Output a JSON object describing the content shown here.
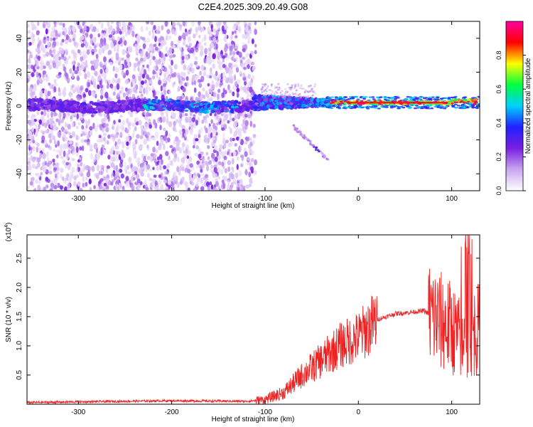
{
  "title": "C2E4.2025.309.20.49.G08",
  "chart_data": [
    {
      "type": "heatmap",
      "xlabel": "Height of straight line (km)",
      "ylabel": "Frequency (Hz)",
      "xlim": [
        -355,
        130
      ],
      "ylim": [
        -50,
        50
      ],
      "xticks": [
        -300,
        -200,
        -100,
        0,
        100
      ],
      "yticks": [
        -40,
        -20,
        0,
        20,
        40
      ],
      "colorbar": {
        "label": "Normalized spectral amplitude",
        "range": [
          0,
          1
        ],
        "ticks": [
          "0.0",
          "0.2",
          "0.4",
          "0.6",
          "0.8"
        ],
        "tick_values": [
          0.0,
          0.2,
          0.4,
          0.6,
          0.8
        ],
        "colors": [
          "#ffffff",
          "#c9a6f0",
          "#7a1fe0",
          "#2020ff",
          "#00d0ff",
          "#00ff40",
          "#ffff00",
          "#ff0000",
          "#ff00a0"
        ]
      },
      "features": {
        "noise_region_x": [
          -355,
          -110
        ],
        "central_band_freq": [
          -3,
          3
        ],
        "strong_line_x": [
          -20,
          125
        ],
        "strong_line_freq": 2,
        "chirp_start": [
          -70,
          -12
        ],
        "chirp_end": [
          -30,
          -33
        ]
      }
    },
    {
      "type": "line",
      "xlabel": "Height of straight line (km)",
      "ylabel": "SNR (10 * v/v)",
      "y_multiplier": "(x10",
      "y_multiplier_exp": "4",
      "line_color": "#ee2222",
      "xlim": [
        -355,
        130
      ],
      "ylim": [
        0,
        2.9
      ],
      "xticks": [
        -300,
        -200,
        -100,
        0,
        100
      ],
      "yticks": [
        "0.5",
        "1.0",
        "1.5",
        "2.0",
        "2.5"
      ],
      "ytick_values": [
        0.5,
        1.0,
        1.5,
        2.0,
        2.5
      ],
      "envelope_x": [
        -355,
        -250,
        -200,
        -120,
        -100,
        -80,
        -60,
        -40,
        -20,
        0,
        20,
        40,
        60,
        70,
        80,
        100,
        115,
        120,
        130
      ],
      "envelope_y": [
        0.03,
        0.05,
        0.06,
        0.05,
        0.08,
        0.2,
        0.5,
        0.75,
        1.0,
        1.15,
        1.45,
        1.55,
        1.58,
        1.6,
        1.5,
        1.3,
        1.0,
        1.2,
        1.3
      ]
    }
  ]
}
